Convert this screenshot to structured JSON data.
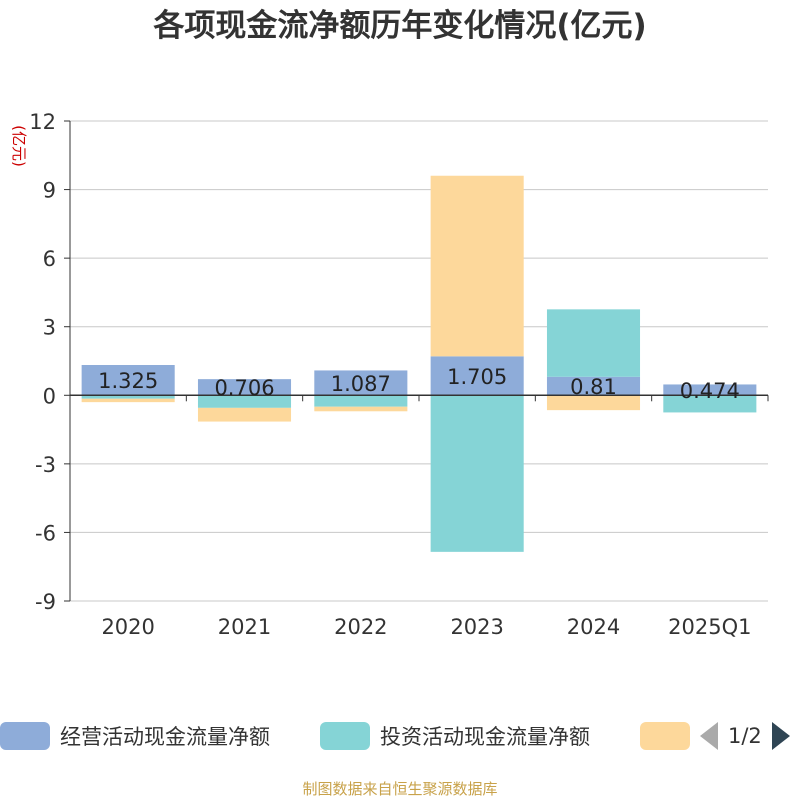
{
  "chart_data": {
    "type": "bar",
    "stacked": true,
    "title": "各项现金流净额历年变化情况(亿元)",
    "ylabel": "(亿元)",
    "categories": [
      "2020",
      "2021",
      "2022",
      "2023",
      "2024",
      "2025Q1"
    ],
    "ylim": [
      -9,
      12
    ],
    "yticks": [
      -9,
      -6,
      -3,
      0,
      3,
      6,
      9,
      12
    ],
    "grid": true,
    "series": [
      {
        "name": "经营活动现金流量净额",
        "color": "#8eacd9",
        "values": [
          1.325,
          0.706,
          1.087,
          1.705,
          0.81,
          0.474
        ],
        "labels": [
          "1.325",
          "0.706",
          "1.087",
          "1.705",
          "0.81",
          "0.474"
        ]
      },
      {
        "name": "投资活动现金流量净额",
        "color": "#85d4d6",
        "values": [
          -0.15,
          -0.55,
          -0.5,
          -6.85,
          2.95,
          -0.75
        ]
      },
      {
        "name": "",
        "color": "#fdd89b",
        "values": [
          -0.15,
          -0.6,
          -0.2,
          7.9,
          -0.65,
          0
        ]
      }
    ]
  },
  "legend": {
    "items": [
      {
        "label": "经营活动现金流量净额",
        "color": "#8eacd9"
      },
      {
        "label": "投资活动现金流量净额",
        "color": "#85d4d6"
      },
      {
        "label": "",
        "color": "#fdd89b"
      }
    ],
    "page_text": "1/2"
  },
  "source_note": "制图数据来自恒生聚源数据库"
}
